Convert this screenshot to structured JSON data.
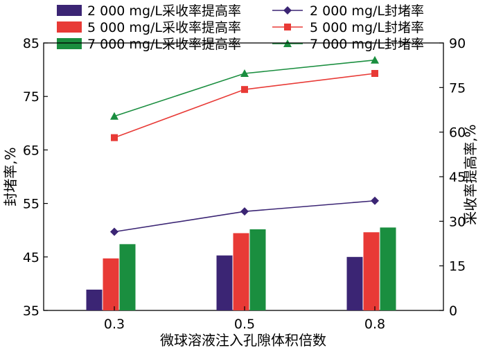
{
  "chart_data": {
    "type": "bar+line",
    "categories": [
      "0.3",
      "0.5",
      "0.8"
    ],
    "xlabel": "微球溶液注入孔隙体积倍数",
    "ylabel_left": "封堵率,%",
    "ylabel_right": "采收率提高率,%",
    "ylim_left": [
      35,
      85
    ],
    "ylim_right": [
      0,
      90
    ],
    "yticks_left": [
      "35",
      "45",
      "55",
      "65",
      "75",
      "85"
    ],
    "yticks_right": [
      "0",
      "15",
      "30",
      "45",
      "60",
      "75",
      "90"
    ],
    "grid": false,
    "legend_position": "top",
    "bar_series": [
      {
        "name": "2 000 mg/L采收率提高率",
        "axis": "right",
        "color": "#3b2574",
        "values": [
          7.0,
          18.5,
          18.0
        ]
      },
      {
        "name": "5 000 mg/L采收率提高率",
        "axis": "right",
        "color": "#e83a36",
        "values": [
          17.5,
          26.0,
          26.3
        ]
      },
      {
        "name": "7 000 mg/L采收率提高率",
        "axis": "right",
        "color": "#1a8e3f",
        "values": [
          22.3,
          27.3,
          27.9
        ]
      }
    ],
    "line_series": [
      {
        "name": "2 000 mg/L封堵率",
        "axis": "left",
        "color": "#3b2574",
        "marker": "diamond",
        "values": [
          49.7,
          53.5,
          55.5
        ]
      },
      {
        "name": "5 000 mg/L封堵率",
        "axis": "left",
        "color": "#e83a36",
        "marker": "square",
        "values": [
          67.3,
          76.3,
          79.3
        ]
      },
      {
        "name": "7 000 mg/L封堵率",
        "axis": "left",
        "color": "#1a8e3f",
        "marker": "triangle",
        "values": [
          71.3,
          79.3,
          81.8
        ]
      }
    ]
  }
}
